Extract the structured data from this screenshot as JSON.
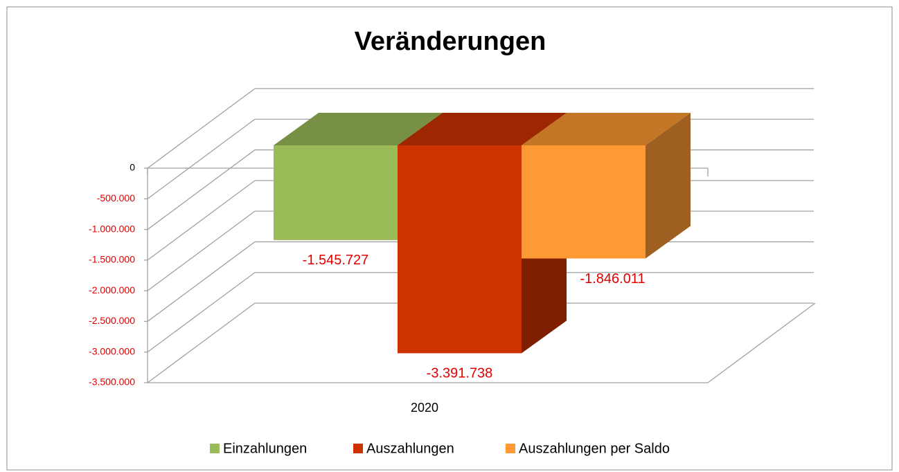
{
  "chart_data": {
    "type": "bar",
    "title": "Veränderungen",
    "categories": [
      "2020"
    ],
    "series": [
      {
        "name": "Einzahlungen",
        "color": "#9bbb59",
        "values": [
          -1545727
        ],
        "value_labels": [
          "-1.545.727"
        ]
      },
      {
        "name": "Auszahlungen",
        "color": "#cc3300",
        "values": [
          -3391738
        ],
        "value_labels": [
          "-3.391.738"
        ]
      },
      {
        "name": "Auszahlungen per Saldo",
        "color": "#ff9933",
        "values": [
          -1846011
        ],
        "value_labels": [
          "-1.846.011"
        ]
      }
    ],
    "ylim": [
      -3500000,
      0
    ],
    "yticks": [
      0,
      {
        "value": -500000,
        "label": "-500.000"
      },
      {
        "value": -1000000,
        "label": "-1.000.000"
      },
      {
        "value": -1500000,
        "label": "-1.500.000"
      },
      {
        "value": -2000000,
        "label": "-2.000.000"
      },
      {
        "value": -2500000,
        "label": "-2.500.000"
      },
      {
        "value": -3000000,
        "label": "-3.000.000"
      },
      {
        "value": -3500000,
        "label": "-3.500.000"
      }
    ],
    "grid": true,
    "legend": "bottom"
  }
}
